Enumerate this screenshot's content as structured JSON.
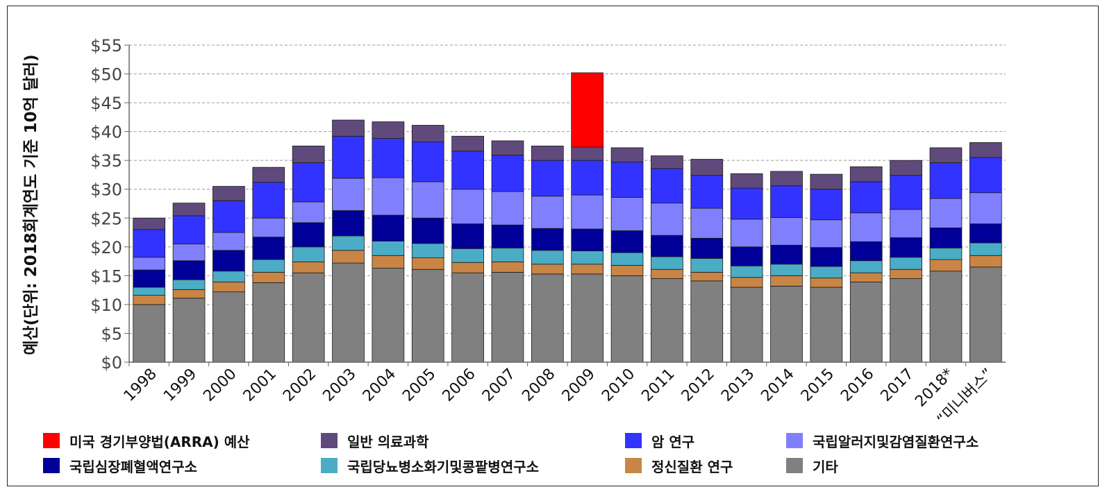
{
  "chart_data": {
    "type": "bar",
    "stacked": true,
    "ylabel": "예산(단위: 2018회계연도 기준 10억 달러)",
    "ylim": [
      0,
      55
    ],
    "yticks": [
      "$0",
      "$5",
      "$10",
      "$15",
      "$20",
      "$25",
      "$30",
      "$35",
      "$40",
      "$45",
      "$50",
      "$55"
    ],
    "grid": "horizontal dashed",
    "categories": [
      "1998",
      "1999",
      "2000",
      "2001",
      "2002",
      "2003",
      "2004",
      "2005",
      "2006",
      "2007",
      "2008",
      "2009",
      "2010",
      "2011",
      "2012",
      "2013",
      "2014",
      "2015",
      "2016",
      "2017",
      "2018*",
      "“미니버스”"
    ],
    "series": [
      {
        "key": "other",
        "name": "기타",
        "color": "#808080",
        "values": [
          10.0,
          11.1,
          12.2,
          13.8,
          15.5,
          17.2,
          16.3,
          16.1,
          15.5,
          15.6,
          15.3,
          15.3,
          15.0,
          14.5,
          14.1,
          13.0,
          13.2,
          13.0,
          13.9,
          14.5,
          15.8,
          16.5
        ]
      },
      {
        "key": "nimh",
        "name": "정신질환 연구",
        "color": "#c98545",
        "values": [
          1.6,
          1.5,
          1.7,
          1.8,
          1.9,
          2.2,
          2.2,
          2.0,
          1.8,
          1.8,
          1.7,
          1.7,
          1.8,
          1.6,
          1.5,
          1.7,
          1.8,
          1.6,
          1.6,
          1.6,
          2.0,
          2.0
        ]
      },
      {
        "key": "niddk",
        "name": "국립당뇨병소화기및콩팥병연구소",
        "color": "#4bacc6",
        "values": [
          1.4,
          1.7,
          1.9,
          2.2,
          2.6,
          2.5,
          2.5,
          2.5,
          2.4,
          2.4,
          2.4,
          2.3,
          2.2,
          2.2,
          2.4,
          2.0,
          2.0,
          2.0,
          2.1,
          2.1,
          2.0,
          2.2
        ]
      },
      {
        "key": "nhlbi",
        "name": "국립심장폐혈액연구소",
        "color": "#000099",
        "values": [
          3.0,
          3.3,
          3.6,
          3.9,
          4.2,
          4.4,
          4.5,
          4.4,
          4.3,
          4.0,
          3.8,
          3.8,
          3.8,
          3.7,
          3.5,
          3.3,
          3.3,
          3.3,
          3.3,
          3.4,
          3.5,
          3.3
        ]
      },
      {
        "key": "niaid",
        "name": "국립알러지및감염질환연구소",
        "color": "#8080ff",
        "values": [
          2.2,
          2.9,
          3.1,
          3.3,
          3.6,
          5.6,
          6.5,
          6.3,
          6.0,
          5.8,
          5.6,
          5.9,
          5.8,
          5.6,
          5.2,
          4.8,
          4.8,
          4.8,
          5.0,
          4.9,
          5.1,
          5.4
        ]
      },
      {
        "key": "nci",
        "name": "암 연구",
        "color": "#3333ff",
        "values": [
          4.8,
          4.9,
          5.5,
          6.2,
          6.8,
          7.3,
          6.8,
          6.9,
          6.6,
          6.3,
          6.2,
          6.0,
          6.1,
          6.0,
          5.7,
          5.4,
          5.5,
          5.3,
          5.4,
          5.9,
          6.2,
          6.1
        ]
      },
      {
        "key": "gms",
        "name": "일반 의료과학",
        "color": "#604a7b",
        "values": [
          2.0,
          2.2,
          2.5,
          2.6,
          2.9,
          2.8,
          2.9,
          2.9,
          2.6,
          2.5,
          2.5,
          2.3,
          2.5,
          2.2,
          2.8,
          2.5,
          2.5,
          2.6,
          2.6,
          2.6,
          2.6,
          2.6
        ]
      },
      {
        "key": "arra",
        "name": "미국 경기부양법(ARRA) 예산",
        "color": "#ff0000",
        "values": [
          0,
          0,
          0,
          0,
          0,
          0,
          0,
          0,
          0,
          0,
          0,
          12.9,
          0,
          0,
          0,
          0,
          0,
          0,
          0,
          0,
          0,
          0
        ]
      }
    ],
    "legend": {
      "placement": "bottom",
      "items": [
        {
          "label": "미국 경기부양법(ARRA) 예산",
          "color": "#ff0000"
        },
        {
          "label": "일반 의료과학",
          "color": "#604a7b"
        },
        {
          "label": "암 연구",
          "color": "#3333ff"
        },
        {
          "label": "국립알러지및감염질환연구소",
          "color": "#8080ff"
        },
        {
          "label": "국립심장폐혈액연구소",
          "color": "#000099"
        },
        {
          "label": "국립당뇨병소화기및콩팥병연구소",
          "color": "#4bacc6"
        },
        {
          "label": "정신질환 연구",
          "color": "#c98545"
        },
        {
          "label": "기타",
          "color": "#808080"
        }
      ]
    }
  }
}
